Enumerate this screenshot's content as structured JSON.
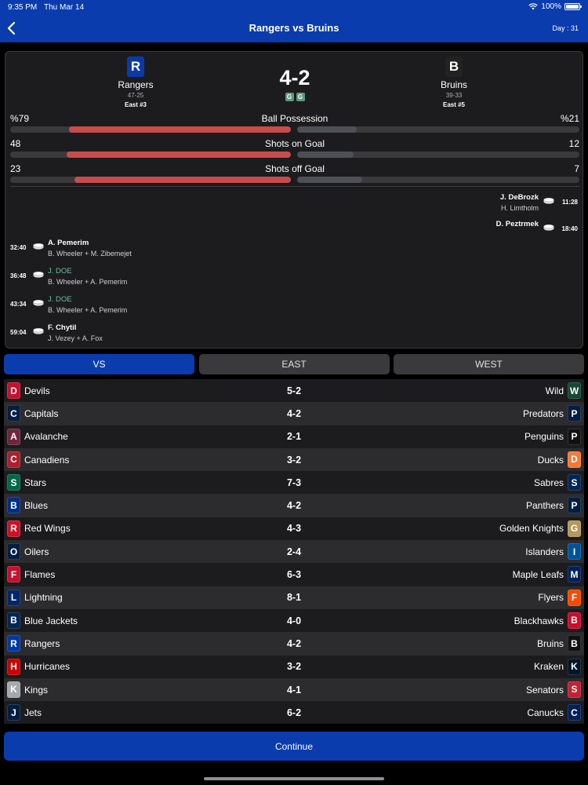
{
  "status": {
    "time": "9:35 PM",
    "date": "Thu Mar 14",
    "battery": "100%"
  },
  "nav": {
    "title": "Rangers vs Bruins",
    "day": "Day : 31"
  },
  "match": {
    "home": {
      "logo": "R",
      "name": "Rangers",
      "record": "47-25",
      "rank": "East #3",
      "color": "#0b3aa8"
    },
    "away": {
      "logo": "B",
      "name": "Bruins",
      "record": "39-33",
      "rank": "East #5",
      "color": "#222222"
    },
    "score": "4-2",
    "goal_badges": [
      "G",
      "G"
    ]
  },
  "stats": [
    {
      "label": "Ball Possession",
      "left": "%79",
      "right": "%21",
      "left_fill": 0.79,
      "right_fill": 0.21
    },
    {
      "label": "Shots on Goal",
      "left": "48",
      "right": "12",
      "left_fill": 0.8,
      "right_fill": 0.2
    },
    {
      "label": "Shots off Goal",
      "left": "23",
      "right": "7",
      "left_fill": 0.77,
      "right_fill": 0.23
    }
  ],
  "events_away": [
    {
      "time": "11:28",
      "scorer": "J. DeBrozk",
      "assist": "H. Limtholm"
    },
    {
      "time": "18:40",
      "scorer": "D. Peztrmek",
      "assist": ""
    }
  ],
  "events_home": [
    {
      "time": "32:40",
      "scorer": "A. Pemerim",
      "assist": "B. Wheeler + M. Zibemejet",
      "green": false
    },
    {
      "time": "36:48",
      "scorer": "J. DOE",
      "assist": "B. Wheeler + A. Pemerim",
      "green": true
    },
    {
      "time": "43:34",
      "scorer": "J. DOE",
      "assist": "B. Wheeler + A. Pemerim",
      "green": true
    },
    {
      "time": "59:04",
      "scorer": "F. Chytil",
      "assist": "J. Vezey + A. Fox",
      "green": false
    }
  ],
  "tabs": [
    {
      "label": "VS",
      "active": true
    },
    {
      "label": "EAST",
      "active": false
    },
    {
      "label": "WEST",
      "active": false
    }
  ],
  "games": [
    {
      "home": "Devils",
      "hl": "D",
      "hc": "#c8102e",
      "score": "5-2",
      "away": "Wild",
      "al": "W",
      "ac": "#154734"
    },
    {
      "home": "Capitals",
      "hl": "C",
      "hc": "#041e42",
      "score": "4-2",
      "away": "Predators",
      "al": "P",
      "ac": "#041e42"
    },
    {
      "home": "Avalanche",
      "hl": "A",
      "hc": "#6f263d",
      "score": "2-1",
      "away": "Penguins",
      "al": "P",
      "ac": "#111111"
    },
    {
      "home": "Canadiens",
      "hl": "C",
      "hc": "#af1e2d",
      "score": "3-2",
      "away": "Ducks",
      "al": "D",
      "ac": "#f47a38"
    },
    {
      "home": "Stars",
      "hl": "S",
      "hc": "#006847",
      "score": "7-3",
      "away": "Sabres",
      "al": "S",
      "ac": "#002654"
    },
    {
      "home": "Blues",
      "hl": "B",
      "hc": "#002f87",
      "score": "4-2",
      "away": "Panthers",
      "al": "P",
      "ac": "#041e42"
    },
    {
      "home": "Red Wings",
      "hl": "R",
      "hc": "#ce1126",
      "score": "4-3",
      "away": "Golden Knights",
      "al": "G",
      "ac": "#b4975a"
    },
    {
      "home": "Oilers",
      "hl": "O",
      "hc": "#041e42",
      "score": "2-4",
      "away": "Islanders",
      "al": "I",
      "ac": "#00539b"
    },
    {
      "home": "Flames",
      "hl": "F",
      "hc": "#c8102e",
      "score": "6-3",
      "away": "Maple Leafs",
      "al": "M",
      "ac": "#00205b"
    },
    {
      "home": "Lightning",
      "hl": "L",
      "hc": "#002868",
      "score": "8-1",
      "away": "Flyers",
      "al": "F",
      "ac": "#f74902"
    },
    {
      "home": "Blue Jackets",
      "hl": "B",
      "hc": "#002654",
      "score": "4-0",
      "away": "Blackhawks",
      "al": "B",
      "ac": "#cf0a2c"
    },
    {
      "home": "Rangers",
      "hl": "R",
      "hc": "#0038a8",
      "score": "4-2",
      "away": "Bruins",
      "al": "B",
      "ac": "#111111"
    },
    {
      "home": "Hurricanes",
      "hl": "H",
      "hc": "#cc0000",
      "score": "3-2",
      "away": "Kraken",
      "al": "K",
      "ac": "#001628"
    },
    {
      "home": "Kings",
      "hl": "K",
      "hc": "#a2aaad",
      "score": "4-1",
      "away": "Senators",
      "al": "S",
      "ac": "#c52032"
    },
    {
      "home": "Jets",
      "hl": "J",
      "hc": "#041e42",
      "score": "6-2",
      "away": "Canucks",
      "al": "C",
      "ac": "#00205b"
    }
  ],
  "continue_label": "Continue",
  "icons": {
    "back": "chevron-left-icon",
    "wifi": "wifi-icon",
    "battery": "battery-icon",
    "puck": "hockey-puck-icon"
  }
}
